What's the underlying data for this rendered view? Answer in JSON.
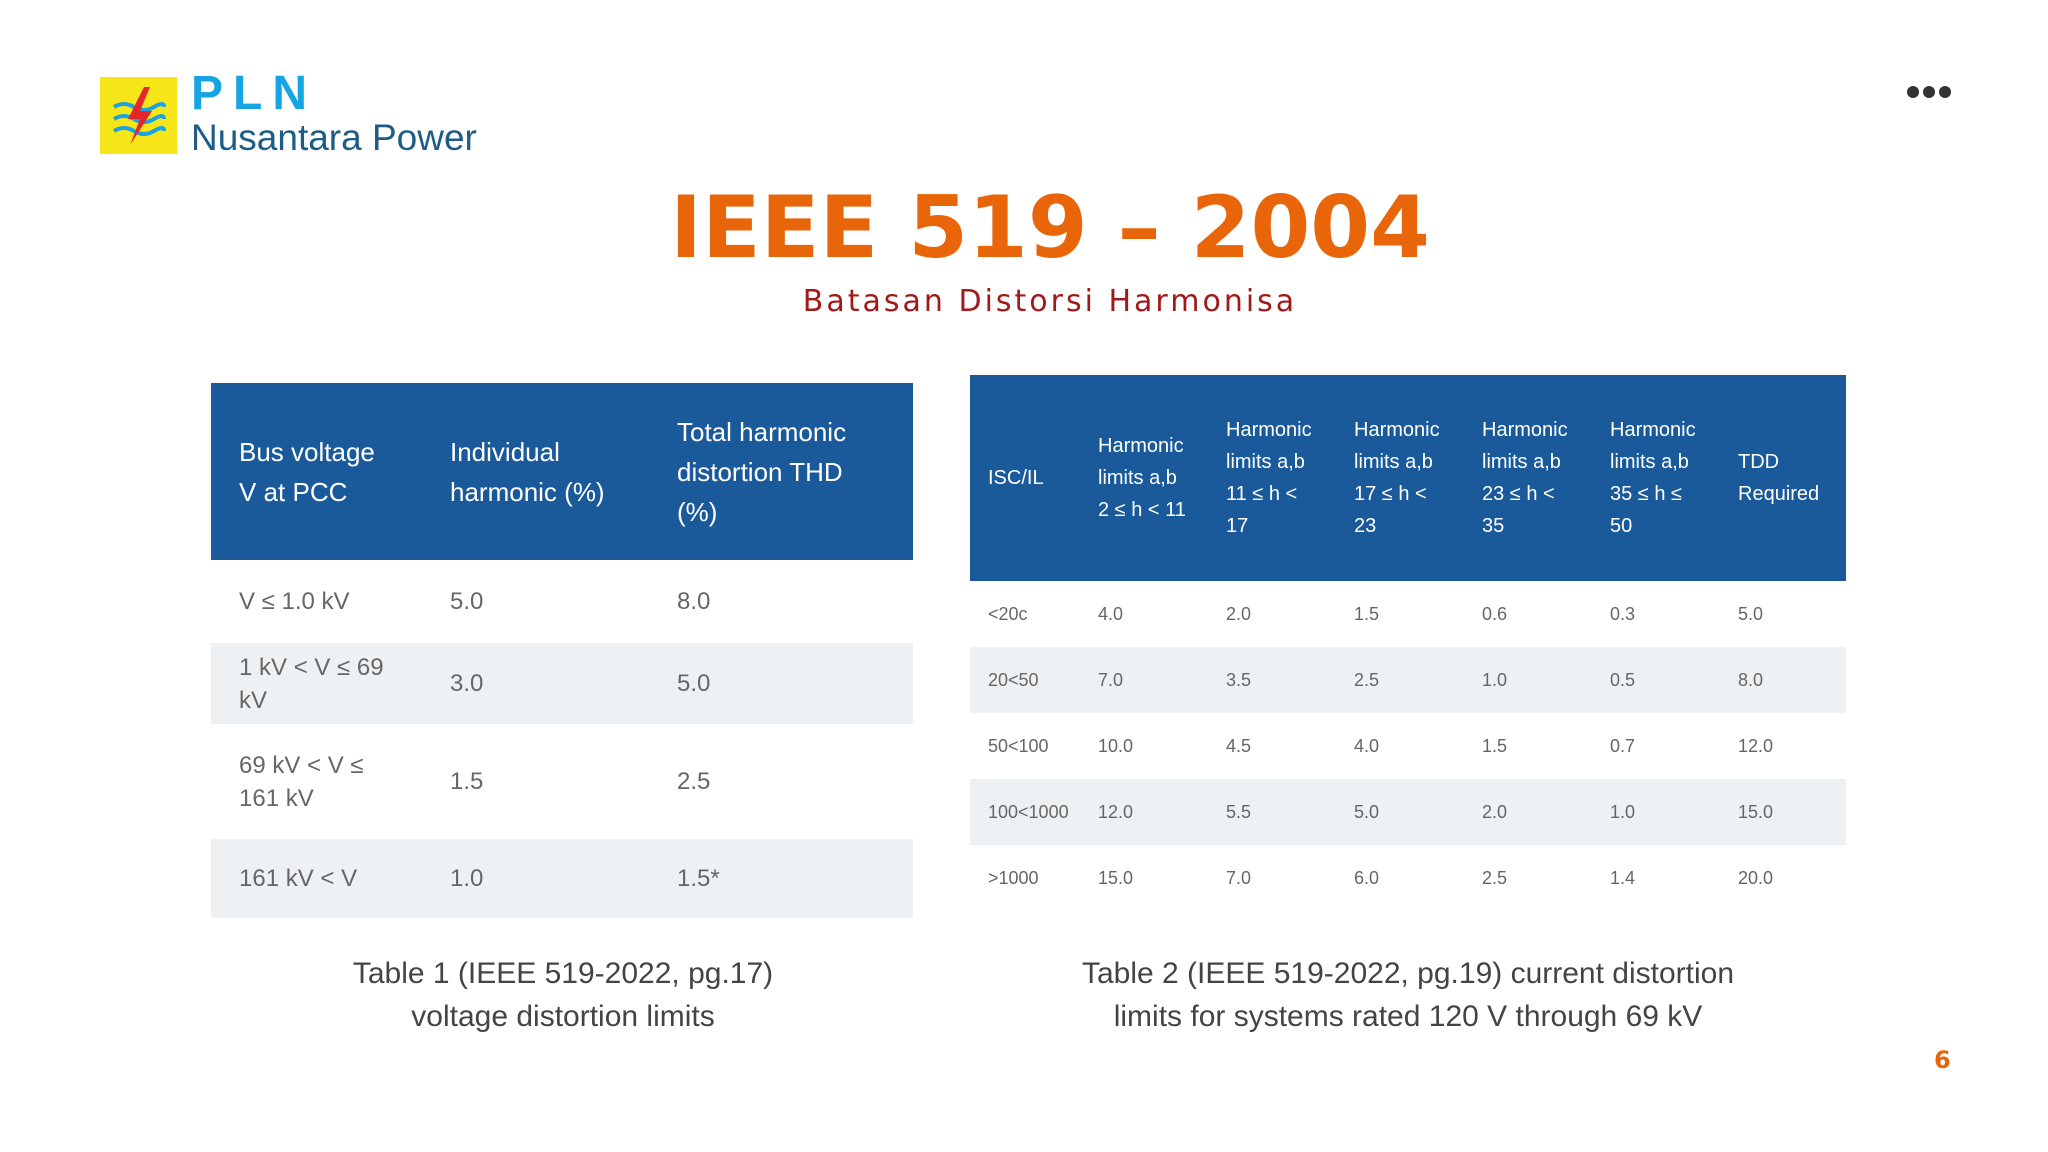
{
  "logo": {
    "brand": "PLN",
    "subbrand": "Nusantara Power"
  },
  "title": "IEEE 519 – 2004",
  "subtitle": "Batasan Distorsi Harmonisa",
  "table1": {
    "header": [
      "Bus voltage V at PCC",
      "Individual harmonic (%)",
      "Total harmonic distortion THD (%)"
    ],
    "rows": [
      [
        "V ≤ 1.0 kV",
        "5.0",
        "8.0"
      ],
      [
        "1 kV < V ≤ 69 kV",
        "3.0",
        "5.0"
      ],
      [
        "69 kV < V ≤ 161 kV",
        "1.5",
        "2.5"
      ],
      [
        "161 kV < V",
        "1.0",
        "1.5*"
      ]
    ],
    "caption": [
      "Table 1 (IEEE 519-2022, pg.17)",
      "voltage distortion limits"
    ]
  },
  "table2": {
    "header": [
      "ISC/IL",
      "Harmonic limits a,b 2 ≤ h < 11",
      "Harmonic limits a,b 11 ≤ h < 17",
      "Harmonic limits a,b 17 ≤ h < 23",
      "Harmonic limits a,b 23 ≤ h < 35",
      "Harmonic limits a,b 35 ≤ h ≤ 50",
      "TDD Required"
    ],
    "rows": [
      [
        "<20c",
        "4.0",
        "2.0",
        "1.5",
        "0.6",
        "0.3",
        "5.0"
      ],
      [
        "20<50",
        "7.0",
        "3.5",
        "2.5",
        "1.0",
        "0.5",
        "8.0"
      ],
      [
        "50<100",
        "10.0",
        "4.5",
        "4.0",
        "1.5",
        "0.7",
        "12.0"
      ],
      [
        "100<1000",
        "12.0",
        "5.5",
        "5.0",
        "2.0",
        "1.0",
        "15.0"
      ],
      [
        ">1000",
        "15.0",
        "7.0",
        "6.0",
        "2.5",
        "1.4",
        "20.0"
      ]
    ],
    "caption": [
      "Table 2 (IEEE 519-2022, pg.19) current distortion",
      "limits for systems rated 120 V through 69 kV"
    ]
  },
  "page_number": "6"
}
